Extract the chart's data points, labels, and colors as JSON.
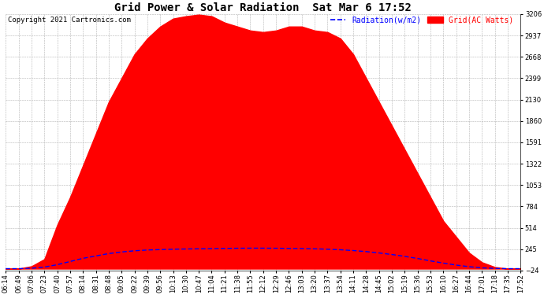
{
  "title": "Grid Power & Solar Radiation  Sat Mar 6 17:52",
  "copyright": "Copyright 2021 Cartronics.com",
  "legend_radiation": "Radiation(w/m2)",
  "legend_grid": "Grid(AC Watts)",
  "y_min": -24.0,
  "y_max": 3206.4,
  "y_ticks": [
    -24.0,
    245.2,
    514.4,
    783.6,
    1052.8,
    1322.0,
    1591.2,
    1860.4,
    2129.6,
    2398.8,
    2668.0,
    2937.2,
    3206.4
  ],
  "x_labels": [
    "06:14",
    "06:49",
    "07:06",
    "07:23",
    "07:40",
    "07:57",
    "08:14",
    "08:31",
    "08:48",
    "09:05",
    "09:22",
    "09:39",
    "09:56",
    "10:13",
    "10:30",
    "10:47",
    "11:04",
    "11:21",
    "11:38",
    "11:55",
    "12:12",
    "12:29",
    "12:46",
    "13:03",
    "13:20",
    "13:37",
    "13:54",
    "14:11",
    "14:28",
    "14:45",
    "15:02",
    "15:19",
    "15:36",
    "15:53",
    "16:10",
    "16:27",
    "16:44",
    "17:01",
    "17:18",
    "17:35",
    "17:52"
  ],
  "grid_color": "#ff0000",
  "radiation_color": "#0000ff",
  "background_color": "#ffffff",
  "title_fontsize": 10,
  "annotation_fontsize": 6.5,
  "tick_fontsize": 6,
  "legend_fontsize": 7,
  "grid_vals": [
    0,
    0,
    30,
    120,
    550,
    900,
    1300,
    1700,
    2100,
    2400,
    2700,
    2900,
    3050,
    3150,
    3180,
    3200,
    3180,
    3100,
    3050,
    3000,
    2980,
    3000,
    3050,
    3050,
    3000,
    2980,
    2900,
    2700,
    2400,
    2100,
    1800,
    1500,
    1200,
    900,
    600,
    400,
    200,
    80,
    20,
    0,
    0
  ],
  "radiation_vals": [
    0,
    0,
    5,
    20,
    50,
    90,
    130,
    160,
    190,
    210,
    225,
    235,
    240,
    245,
    248,
    250,
    252,
    255,
    257,
    258,
    258,
    257,
    255,
    253,
    250,
    245,
    238,
    228,
    215,
    198,
    178,
    155,
    128,
    98,
    70,
    45,
    25,
    10,
    3,
    0,
    0
  ]
}
